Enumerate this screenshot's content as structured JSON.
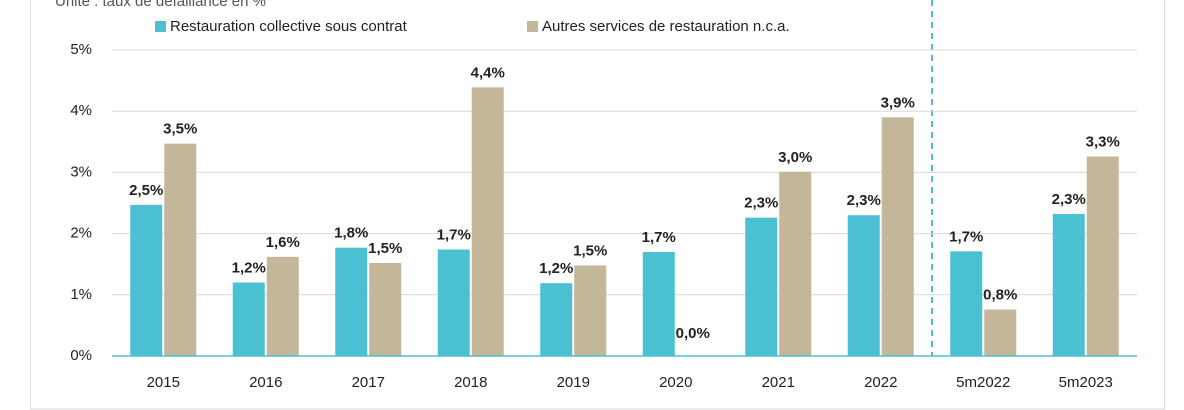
{
  "chart_data": {
    "type": "bar",
    "subtitle": "Unité : taux de défaillance en %",
    "categories": [
      "2015",
      "2016",
      "2017",
      "2018",
      "2019",
      "2020",
      "2021",
      "2022",
      "5m2022",
      "5m2023"
    ],
    "series": [
      {
        "name": "Restauration collective sous contrat",
        "color": "#4bc0d3",
        "values": [
          2.47,
          1.2,
          1.77,
          1.74,
          1.19,
          1.7,
          2.26,
          2.3,
          1.71,
          2.32
        ],
        "value_labels": [
          "2,5%",
          "1,2%",
          "1,8%",
          "1,7%",
          "1,2%",
          "1,7%",
          "2,3%",
          "2,3%",
          "1,7%",
          "2,3%"
        ]
      },
      {
        "name": "Autres services de restauration n.c.a.",
        "color": "#c4b699",
        "values": [
          3.47,
          1.62,
          1.52,
          4.39,
          1.48,
          0,
          3.01,
          3.9,
          0.76,
          3.26
        ],
        "value_labels": [
          "3,5%",
          "1,6%",
          "1,5%",
          "4,4%",
          "1,5%",
          "0,0%",
          "3,0%",
          "3,9%",
          "0,8%",
          "3,3%"
        ]
      }
    ],
    "ylim": [
      0,
      5
    ],
    "yticks": [
      {
        "value": 0,
        "label": "0%"
      },
      {
        "value": 1,
        "label": "1%"
      },
      {
        "value": 2,
        "label": "2%"
      },
      {
        "value": 3,
        "label": "3%"
      },
      {
        "value": 4,
        "label": "4%"
      },
      {
        "value": 5,
        "label": "5%"
      }
    ],
    "grid": true,
    "legend": "top"
  }
}
